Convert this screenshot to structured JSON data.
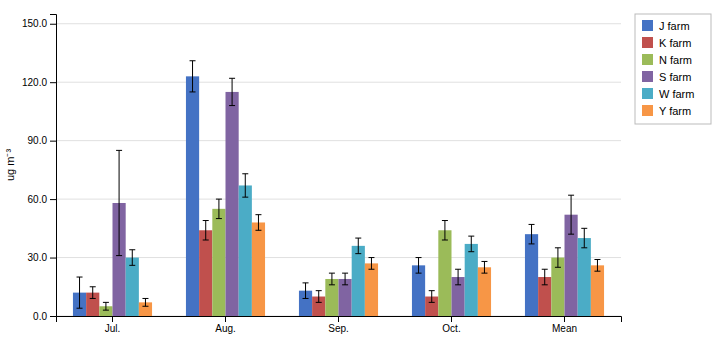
{
  "chart_data": {
    "type": "bar",
    "categories": [
      "Jul.",
      "Aug.",
      "Sep.",
      "Oct.",
      "Mean"
    ],
    "series": [
      {
        "name": "J farm",
        "color": "#4472C4",
        "values": [
          12,
          123,
          13,
          26,
          42
        ],
        "errors": [
          8,
          8,
          4,
          4,
          5
        ]
      },
      {
        "name": "K farm",
        "color": "#C0504D",
        "values": [
          12,
          44,
          10,
          10,
          20
        ],
        "errors": [
          3,
          5,
          3,
          3,
          4
        ]
      },
      {
        "name": "N farm",
        "color": "#9BBB59",
        "values": [
          5,
          55,
          19,
          44,
          30
        ],
        "errors": [
          2,
          5,
          3,
          5,
          5
        ]
      },
      {
        "name": "S farm",
        "color": "#8064A2",
        "values": [
          58,
          115,
          19,
          20,
          52
        ],
        "errors": [
          27,
          7,
          3,
          4,
          10
        ]
      },
      {
        "name": "W farm",
        "color": "#4BACC6",
        "values": [
          30,
          67,
          36,
          37,
          40
        ],
        "errors": [
          4,
          6,
          4,
          4,
          5
        ]
      },
      {
        "name": "Y farm",
        "color": "#F79646",
        "values": [
          7,
          48,
          27,
          25,
          26
        ],
        "errors": [
          2,
          4,
          3,
          3,
          3
        ]
      }
    ],
    "y_label": "ug m⁻³",
    "ylim": [
      0,
      155
    ],
    "yticks": [
      {
        "value": 0,
        "label": "0.0"
      },
      {
        "value": 30,
        "label": "30.0"
      },
      {
        "value": 60,
        "label": "60.0"
      },
      {
        "value": 90,
        "label": "90.0"
      },
      {
        "value": 120,
        "label": "120.0"
      },
      {
        "value": 150,
        "label": "150.0"
      }
    ],
    "grid": true,
    "legend": "top-right"
  }
}
